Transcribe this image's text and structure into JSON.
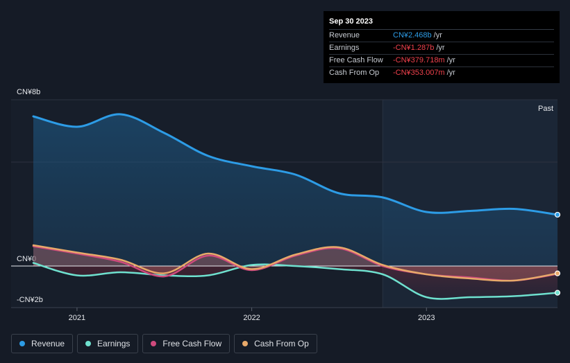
{
  "tooltip": {
    "date": "Sep 30 2023",
    "rows": [
      {
        "label": "Revenue",
        "value": "CN¥2.468b",
        "unit": "/yr",
        "color": "#2d9ce6"
      },
      {
        "label": "Earnings",
        "value": "-CN¥1.287b",
        "unit": "/yr",
        "color": "#f0414c"
      },
      {
        "label": "Free Cash Flow",
        "value": "-CN¥379.718m",
        "unit": "/yr",
        "color": "#f0414c"
      },
      {
        "label": "Cash From Op",
        "value": "-CN¥353.007m",
        "unit": "/yr",
        "color": "#f0414c"
      }
    ]
  },
  "legend": [
    {
      "label": "Revenue",
      "color": "#2d9ce6"
    },
    {
      "label": "Earnings",
      "color": "#6fe1cf"
    },
    {
      "label": "Free Cash Flow",
      "color": "#cf4a7d"
    },
    {
      "label": "Cash From Op",
      "color": "#e8a96a"
    }
  ],
  "chart_data": {
    "type": "area",
    "ylim": [
      -2.0,
      8.0
    ],
    "y_unit": "CN¥b",
    "y_tick_labels": [
      {
        "value": 8,
        "label": "CN¥8b"
      },
      {
        "value": 0,
        "label": "CN¥0"
      },
      {
        "value": -2,
        "label": "-CN¥2b"
      }
    ],
    "x_range": [
      2020.75,
      2023.75
    ],
    "x_tick_labels": [
      {
        "value": 2021,
        "label": "2021"
      },
      {
        "value": 2022,
        "label": "2022"
      },
      {
        "value": 2023,
        "label": "2023"
      }
    ],
    "past_label": "Past",
    "past_start": 2022.75,
    "grid": true,
    "series": [
      {
        "name": "Revenue",
        "color": "#2d9ce6",
        "x": [
          2020.75,
          2021.0,
          2021.25,
          2021.5,
          2021.75,
          2022.0,
          2022.25,
          2022.5,
          2022.75,
          2023.0,
          2023.25,
          2023.5,
          2023.75
        ],
        "values": [
          7.2,
          6.7,
          7.3,
          6.4,
          5.3,
          4.8,
          4.4,
          3.5,
          3.3,
          2.6,
          2.65,
          2.75,
          2.468
        ]
      },
      {
        "name": "Earnings",
        "color": "#6fe1cf",
        "x": [
          2020.75,
          2021.0,
          2021.25,
          2021.5,
          2021.75,
          2022.0,
          2022.25,
          2022.5,
          2022.75,
          2023.0,
          2023.25,
          2023.5,
          2023.75
        ],
        "values": [
          0.15,
          -0.45,
          -0.3,
          -0.45,
          -0.45,
          0.05,
          0.0,
          -0.15,
          -0.4,
          -1.5,
          -1.5,
          -1.45,
          -1.287
        ]
      },
      {
        "name": "Free Cash Flow",
        "color": "#cf4a7d",
        "x": [
          2020.75,
          2021.0,
          2021.25,
          2021.5,
          2021.75,
          2022.0,
          2022.25,
          2022.5,
          2022.75,
          2023.0,
          2023.25,
          2023.5,
          2023.75
        ],
        "values": [
          0.95,
          0.6,
          0.2,
          -0.5,
          0.5,
          -0.2,
          0.5,
          0.85,
          0.0,
          -0.4,
          -0.55,
          -0.7,
          -0.38
        ]
      },
      {
        "name": "Cash From Op",
        "color": "#e8a96a",
        "x": [
          2020.75,
          2021.0,
          2021.25,
          2021.5,
          2021.75,
          2022.0,
          2022.25,
          2022.5,
          2022.75,
          2023.0,
          2023.25,
          2023.5,
          2023.75
        ],
        "values": [
          1.0,
          0.65,
          0.3,
          -0.35,
          0.6,
          -0.15,
          0.55,
          0.9,
          0.05,
          -0.4,
          -0.6,
          -0.7,
          -0.353
        ]
      }
    ]
  }
}
